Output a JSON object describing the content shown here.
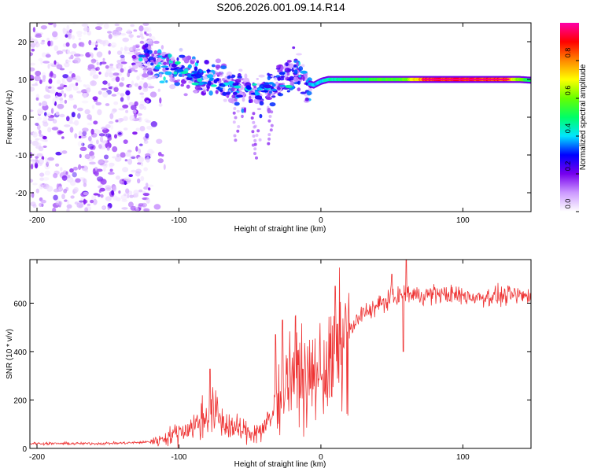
{
  "figure_title": "S206.2026.001.09.14.R14",
  "chart_data": [
    {
      "type": "heatmap",
      "name": "spectrogram",
      "title": "S206.2026.001.09.14.R14",
      "xlabel": "Height of straight line (km)",
      "ylabel": "Frequency (Hz)",
      "xlim": [
        -205,
        148
      ],
      "ylim": [
        -25,
        25
      ],
      "x_ticks": [
        -200,
        -100,
        0,
        100
      ],
      "y_ticks": [
        -20,
        -10,
        0,
        10,
        20
      ],
      "colorbar": {
        "label": "Normalized spectral amplitude",
        "range": [
          0,
          1
        ],
        "ticks": [
          0.0,
          0.2,
          0.4,
          0.6,
          0.8
        ],
        "tick_labels": [
          "0.0",
          "0.2",
          "0.4",
          "0.6",
          "0.8"
        ],
        "colormap": [
          "#ffffff",
          "#cc99ff",
          "#7700ee",
          "#0000ff",
          "#00e5ff",
          "#00ff66",
          "#66ff00",
          "#ffff00",
          "#ff8800",
          "#ff0000",
          "#ff00aa"
        ]
      },
      "noise_region": {
        "x_range": [
          -205,
          -120
        ],
        "freq_range": [
          -25,
          25
        ],
        "amplitude": [
          0.02,
          0.25
        ]
      },
      "signal_track": [
        {
          "x": -130,
          "freq": 16.5,
          "amp": 0.18
        },
        {
          "x": -120,
          "freq": 15.5,
          "amp": 0.3
        },
        {
          "x": -110,
          "freq": 13.5,
          "amp": 0.4
        },
        {
          "x": -100,
          "freq": 12.5,
          "amp": 0.35
        },
        {
          "x": -90,
          "freq": 11.5,
          "amp": 0.4
        },
        {
          "x": -80,
          "freq": 10.5,
          "amp": 0.35
        },
        {
          "x": -70,
          "freq": 9.0,
          "amp": 0.3
        },
        {
          "x": -60,
          "freq": 8.0,
          "amp": 0.32
        },
        {
          "x": -50,
          "freq": 7.0,
          "amp": 0.35
        },
        {
          "x": -40,
          "freq": 6.5,
          "amp": 0.3
        },
        {
          "x": -30,
          "freq": 9.5,
          "amp": 0.3
        },
        {
          "x": -20,
          "freq": 11.0,
          "amp": 0.35
        },
        {
          "x": -15,
          "freq": 12.5,
          "amp": 0.4
        },
        {
          "x": -10,
          "freq": 9.0,
          "amp": 0.35
        },
        {
          "x": -5,
          "freq": 8.5,
          "amp": 0.4
        },
        {
          "x": 0,
          "freq": 9.5,
          "amp": 0.4
        },
        {
          "x": 5,
          "freq": 10.0,
          "amp": 0.45
        },
        {
          "x": 20,
          "freq": 10.0,
          "amp": 0.5
        },
        {
          "x": 40,
          "freq": 10.0,
          "amp": 0.55
        },
        {
          "x": 60,
          "freq": 10.0,
          "amp": 0.6
        },
        {
          "x": 75,
          "freq": 10.0,
          "amp": 0.9
        },
        {
          "x": 100,
          "freq": 10.0,
          "amp": 0.92
        },
        {
          "x": 130,
          "freq": 10.0,
          "amp": 0.85
        },
        {
          "x": 140,
          "freq": 10.0,
          "amp": 0.6
        },
        {
          "x": 148,
          "freq": 9.8,
          "amp": 0.5
        }
      ]
    },
    {
      "type": "line",
      "name": "snr",
      "xlabel": "Height of straight line (km)",
      "ylabel": "SNR (10 * v/v)",
      "xlim": [
        -205,
        148
      ],
      "ylim": [
        0,
        780
      ],
      "x_ticks": [
        -200,
        -100,
        0,
        100
      ],
      "y_ticks": [
        0,
        200,
        400,
        600
      ],
      "color": "#ee3333",
      "series": [
        {
          "name": "SNR",
          "x": [
            -205,
            -180,
            -160,
            -140,
            -125,
            -115,
            -105,
            -95,
            -88,
            -80,
            -75,
            -70,
            -60,
            -50,
            -42,
            -35,
            -30,
            -25,
            -20,
            -15,
            -10,
            -5,
            0,
            5,
            10,
            15,
            20,
            25,
            30,
            40,
            50,
            60,
            70,
            80,
            90,
            100,
            110,
            120,
            130,
            140,
            148
          ],
          "y": [
            20,
            20,
            20,
            22,
            25,
            32,
            55,
            80,
            95,
            140,
            150,
            110,
            80,
            65,
            75,
            120,
            220,
            280,
            330,
            320,
            260,
            300,
            320,
            330,
            370,
            430,
            480,
            520,
            560,
            590,
            620,
            640,
            630,
            640,
            635,
            630,
            625,
            628,
            630,
            632,
            628
          ]
        }
      ],
      "spikes": [
        {
          "x": -78,
          "y": 328
        },
        {
          "x": -32,
          "y": 470
        },
        {
          "x": -27,
          "y": 530
        },
        {
          "x": 10,
          "y": 670
        },
        {
          "x": 50,
          "y": 720
        },
        {
          "x": 58,
          "y": 400
        },
        {
          "x": 60,
          "y": 780
        }
      ]
    }
  ]
}
